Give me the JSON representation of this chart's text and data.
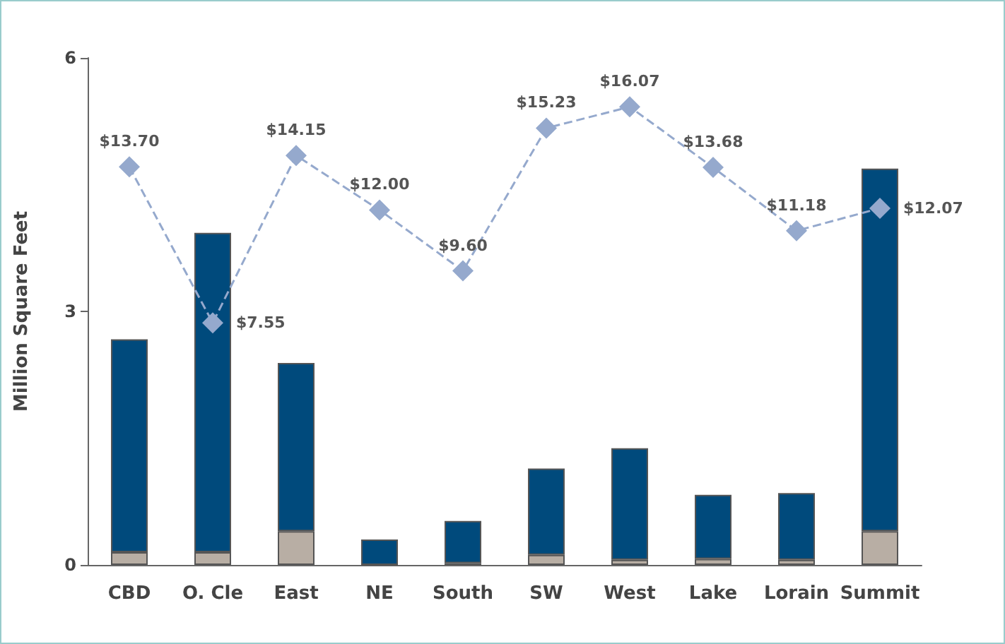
{
  "chart_data": {
    "type": "bar",
    "stacked": true,
    "ylabel": "Million Square Feet",
    "categories": [
      "CBD",
      "O. Cle",
      "East",
      "NE",
      "South",
      "SW",
      "West",
      "Lake",
      "Lorain",
      "Summit"
    ],
    "ylim": [
      0,
      6
    ],
    "yticks": [
      0,
      3,
      6
    ],
    "y2lim": [
      -2,
      18
    ],
    "grid": false,
    "series": [
      {
        "color": "#b8aea4",
        "values": [
          0.15,
          0.15,
          0.4,
          0.0,
          0.02,
          0.12,
          0.06,
          0.07,
          0.06,
          0.4
        ]
      },
      {
        "color": "#004a7c",
        "values": [
          2.52,
          3.78,
          1.99,
          0.3,
          0.5,
          1.02,
          1.32,
          0.76,
          0.79,
          4.29
        ]
      },
      {
        "type": "line",
        "axis": "y2",
        "color": "#95a9cd",
        "marker": "diamond",
        "line_style": "dashed",
        "values": [
          13.7,
          7.55,
          14.15,
          12.0,
          9.6,
          15.23,
          16.07,
          13.68,
          11.18,
          12.07
        ],
        "value_labels": [
          "$13.70",
          "$7.55",
          "$14.15",
          "$12.00",
          "$9.60",
          "$15.23",
          "$16.07",
          "$13.68",
          "$11.18",
          "$12.07"
        ]
      }
    ]
  }
}
